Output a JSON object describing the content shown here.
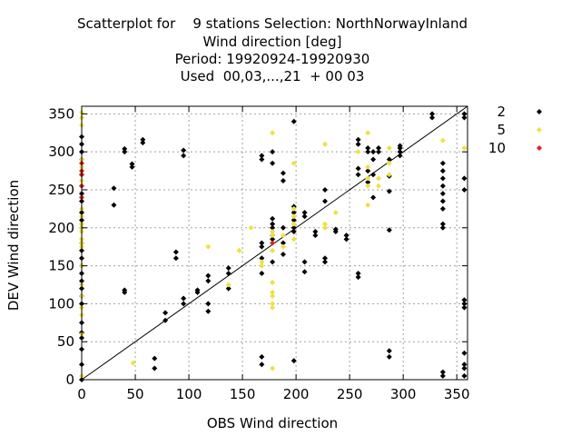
{
  "title_lines": [
    "Scatterplot for    9 stations Selection: NorthNorwayInland",
    "Wind direction [deg]",
    "Period: 19920924-19920930",
    "Used  00,03,...,21  + 00 03"
  ],
  "chart_data": {
    "type": "scatter",
    "xlabel": "OBS Wind direction",
    "ylabel": "DEV Wind direction",
    "xlim": [
      0,
      360
    ],
    "ylim": [
      0,
      360
    ],
    "xticks": [
      0,
      50,
      100,
      150,
      200,
      250,
      300,
      350
    ],
    "yticks": [
      0,
      50,
      100,
      150,
      200,
      250,
      300,
      350
    ],
    "grid": true,
    "diagonal": true,
    "legend_position": "outside-right",
    "series": [
      {
        "name": "2",
        "color": "#000000",
        "points": [
          [
            0,
            0
          ],
          [
            0,
            20
          ],
          [
            0,
            40
          ],
          [
            0,
            55
          ],
          [
            0,
            62
          ],
          [
            0,
            75
          ],
          [
            0,
            100
          ],
          [
            0,
            110
          ],
          [
            0,
            120
          ],
          [
            0,
            130
          ],
          [
            0,
            140
          ],
          [
            0,
            150
          ],
          [
            0,
            160
          ],
          [
            0,
            170
          ],
          [
            0,
            180
          ],
          [
            0,
            200
          ],
          [
            0,
            210
          ],
          [
            0,
            220
          ],
          [
            0,
            235
          ],
          [
            0,
            245
          ],
          [
            0,
            255
          ],
          [
            0,
            270
          ],
          [
            0,
            290
          ],
          [
            0,
            300
          ],
          [
            0,
            310
          ],
          [
            0,
            320
          ],
          [
            30,
            230
          ],
          [
            30,
            252
          ],
          [
            40,
            115
          ],
          [
            40,
            118
          ],
          [
            40,
            300
          ],
          [
            40,
            304
          ],
          [
            47,
            280
          ],
          [
            47,
            284
          ],
          [
            57,
            312
          ],
          [
            57,
            316
          ],
          [
            68,
            15
          ],
          [
            68,
            28
          ],
          [
            78,
            78
          ],
          [
            78,
            88
          ],
          [
            88,
            160
          ],
          [
            88,
            168
          ],
          [
            95,
            100
          ],
          [
            95,
            107
          ],
          [
            95,
            295
          ],
          [
            95,
            302
          ],
          [
            108,
            115
          ],
          [
            108,
            118
          ],
          [
            118,
            90
          ],
          [
            118,
            100
          ],
          [
            118,
            130
          ],
          [
            118,
            137
          ],
          [
            137,
            120
          ],
          [
            137,
            140
          ],
          [
            137,
            147
          ],
          [
            168,
            20
          ],
          [
            168,
            30
          ],
          [
            168,
            140
          ],
          [
            168,
            160
          ],
          [
            168,
            175
          ],
          [
            168,
            180
          ],
          [
            168,
            290
          ],
          [
            168,
            295
          ],
          [
            178,
            155
          ],
          [
            178,
            185
          ],
          [
            178,
            190
          ],
          [
            178,
            200
          ],
          [
            178,
            205
          ],
          [
            178,
            212
          ],
          [
            178,
            285
          ],
          [
            178,
            300
          ],
          [
            188,
            165
          ],
          [
            188,
            180
          ],
          [
            188,
            200
          ],
          [
            188,
            262
          ],
          [
            188,
            272
          ],
          [
            198,
            25
          ],
          [
            198,
            195
          ],
          [
            198,
            200
          ],
          [
            198,
            210
          ],
          [
            198,
            220
          ],
          [
            198,
            228
          ],
          [
            198,
            340
          ],
          [
            208,
            142
          ],
          [
            208,
            155
          ],
          [
            208,
            215
          ],
          [
            208,
            220
          ],
          [
            218,
            190
          ],
          [
            218,
            195
          ],
          [
            227,
            155
          ],
          [
            227,
            160
          ],
          [
            227,
            235
          ],
          [
            227,
            250
          ],
          [
            237,
            195
          ],
          [
            237,
            198
          ],
          [
            247,
            185
          ],
          [
            247,
            190
          ],
          [
            258,
            135
          ],
          [
            258,
            140
          ],
          [
            258,
            270
          ],
          [
            258,
            278
          ],
          [
            258,
            310
          ],
          [
            258,
            316
          ],
          [
            267,
            260
          ],
          [
            267,
            275
          ],
          [
            267,
            300
          ],
          [
            267,
            305
          ],
          [
            272,
            240
          ],
          [
            272,
            270
          ],
          [
            272,
            290
          ],
          [
            272,
            300
          ],
          [
            277,
            300
          ],
          [
            277,
            305
          ],
          [
            287,
            30
          ],
          [
            287,
            38
          ],
          [
            287,
            197
          ],
          [
            287,
            248
          ],
          [
            287,
            268
          ],
          [
            287,
            290
          ],
          [
            297,
            295
          ],
          [
            297,
            300
          ],
          [
            297,
            305
          ],
          [
            297,
            308
          ],
          [
            327,
            350
          ],
          [
            327,
            345
          ],
          [
            337,
            5
          ],
          [
            337,
            10
          ],
          [
            337,
            200
          ],
          [
            337,
            205
          ],
          [
            337,
            225
          ],
          [
            337,
            235
          ],
          [
            337,
            245
          ],
          [
            337,
            255
          ],
          [
            337,
            265
          ],
          [
            337,
            275
          ],
          [
            337,
            285
          ],
          [
            357,
            5
          ],
          [
            357,
            15
          ],
          [
            357,
            20
          ],
          [
            357,
            35
          ],
          [
            357,
            95
          ],
          [
            357,
            100
          ],
          [
            357,
            105
          ],
          [
            357,
            250
          ],
          [
            357,
            265
          ],
          [
            357,
            345
          ],
          [
            357,
            350
          ]
        ]
      },
      {
        "name": "5",
        "color": "#f0e040",
        "points": [
          [
            0,
            5
          ],
          [
            0,
            60
          ],
          [
            0,
            85
          ],
          [
            0,
            95
          ],
          [
            0,
            110
          ],
          [
            0,
            125
          ],
          [
            0,
            150
          ],
          [
            0,
            175
          ],
          [
            0,
            180
          ],
          [
            0,
            185
          ],
          [
            0,
            195
          ],
          [
            0,
            200
          ],
          [
            0,
            205
          ],
          [
            0,
            215
          ],
          [
            0,
            225
          ],
          [
            0,
            255
          ],
          [
            0,
            262
          ],
          [
            0,
            280
          ],
          [
            0,
            290
          ],
          [
            0,
            335
          ],
          [
            0,
            345
          ],
          [
            0,
            352
          ],
          [
            48,
            22
          ],
          [
            118,
            175
          ],
          [
            137,
            125
          ],
          [
            147,
            170
          ],
          [
            158,
            200
          ],
          [
            168,
            150
          ],
          [
            168,
            155
          ],
          [
            178,
            15
          ],
          [
            178,
            95
          ],
          [
            178,
            100
          ],
          [
            178,
            110
          ],
          [
            178,
            115
          ],
          [
            178,
            128
          ],
          [
            178,
            170
          ],
          [
            178,
            190
          ],
          [
            178,
            195
          ],
          [
            178,
            325
          ],
          [
            188,
            175
          ],
          [
            188,
            190
          ],
          [
            198,
            185
          ],
          [
            198,
            205
          ],
          [
            198,
            215
          ],
          [
            198,
            225
          ],
          [
            198,
            285
          ],
          [
            227,
            200
          ],
          [
            227,
            205
          ],
          [
            227,
            310
          ],
          [
            237,
            220
          ],
          [
            258,
            300
          ],
          [
            267,
            230
          ],
          [
            267,
            255
          ],
          [
            267,
            265
          ],
          [
            267,
            280
          ],
          [
            267,
            325
          ],
          [
            277,
            255
          ],
          [
            277,
            265
          ],
          [
            287,
            270
          ],
          [
            287,
            285
          ],
          [
            287,
            305
          ],
          [
            337,
            315
          ],
          [
            357,
            305
          ]
        ]
      },
      {
        "name": "10",
        "color": "#e02020",
        "points": [
          [
            0,
            240
          ],
          [
            0,
            255
          ],
          [
            0,
            270
          ],
          [
            0,
            275
          ],
          [
            0,
            285
          ],
          [
            178,
            180
          ]
        ]
      }
    ]
  }
}
